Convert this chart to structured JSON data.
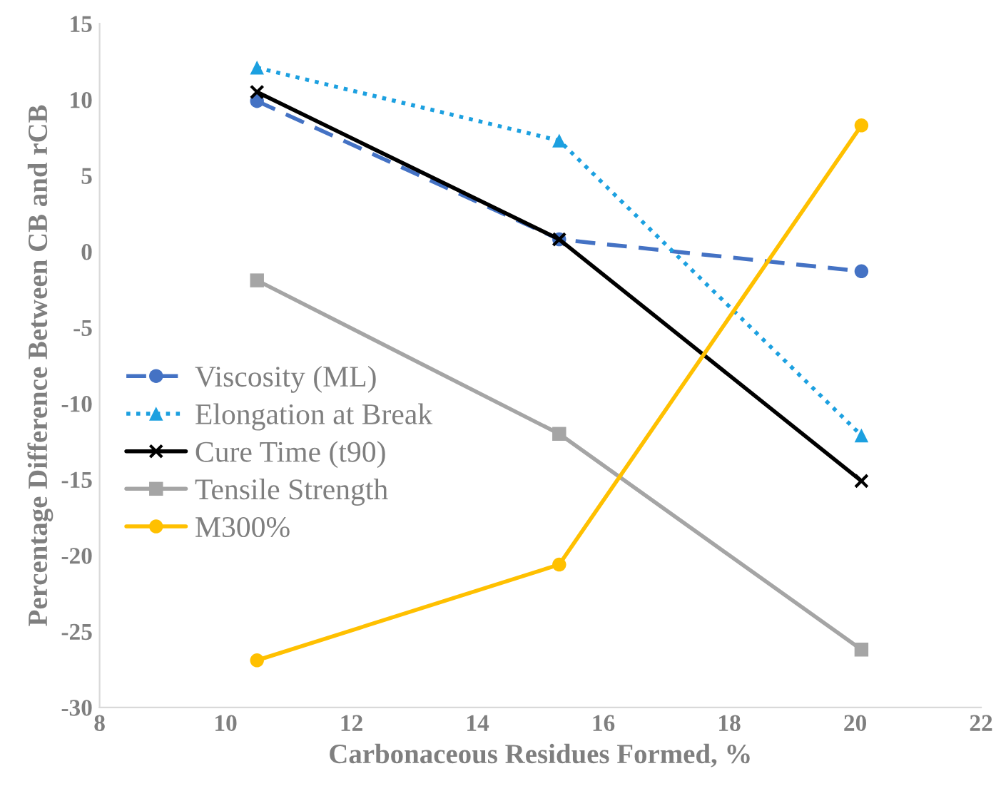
{
  "chart_data": {
    "type": "line",
    "xlabel": "Carbonaceous Residues Formed, %",
    "ylabel": "Percentage Difference Between CB and rCB",
    "x": [
      10.5,
      15.3,
      20.1
    ],
    "series": [
      {
        "name": "Viscosity (ML)",
        "color": "#4472c4",
        "values": [
          9.9,
          0.8,
          -1.3
        ],
        "marker": "circle",
        "line_style": "dashed"
      },
      {
        "name": "Elongation at Break",
        "color": "#1ca0e0",
        "values": [
          12.1,
          7.3,
          -12.1
        ],
        "marker": "triangle",
        "line_style": "dotted"
      },
      {
        "name": "Cure Time (t90)",
        "color": "#000000",
        "values": [
          10.5,
          0.8,
          -15.1
        ],
        "marker": "cross",
        "line_style": "solid"
      },
      {
        "name": "Tensile Strength",
        "color": "#a5a5a5",
        "values": [
          -1.9,
          -12.0,
          -26.2
        ],
        "marker": "square",
        "line_style": "solid"
      },
      {
        "name": "M300%",
        "color": "#ffc000",
        "values": [
          -26.9,
          -20.6,
          8.3
        ],
        "marker": "circle",
        "line_style": "solid"
      }
    ],
    "xlim": [
      8,
      22
    ],
    "xticks": [
      8,
      10,
      12,
      14,
      16,
      18,
      20,
      22
    ],
    "ylim": [
      -30,
      15
    ],
    "yticks": [
      -30,
      -25,
      -20,
      -15,
      -10,
      -5,
      0,
      5,
      10,
      15
    ],
    "grid": false,
    "legend": "left"
  }
}
